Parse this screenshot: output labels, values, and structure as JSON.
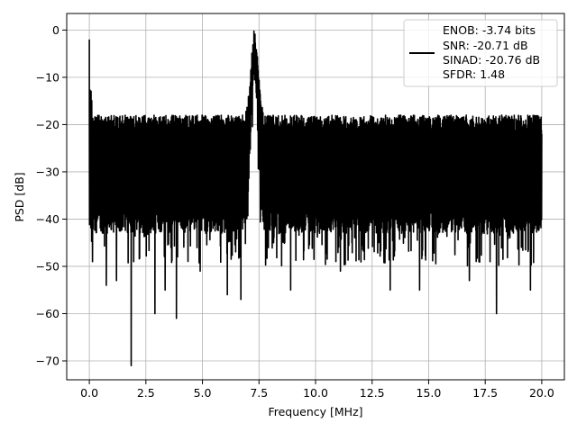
{
  "chart_data": {
    "type": "line",
    "xlabel": "Frequency [MHz]",
    "ylabel": "PSD [dB]",
    "xlim": [
      -1.0,
      21.0
    ],
    "ylim": [
      -74.0,
      3.5
    ],
    "xticks": [
      0.0,
      2.5,
      5.0,
      7.5,
      10.0,
      12.5,
      15.0,
      17.5,
      20.0
    ],
    "xtick_labels": [
      "0.0",
      "2.5",
      "5.0",
      "7.5",
      "10.0",
      "12.5",
      "15.0",
      "17.5",
      "20.0"
    ],
    "yticks": [
      0,
      -10,
      -20,
      -30,
      -40,
      -50,
      -60,
      -70
    ],
    "ytick_labels": [
      "0",
      "−10",
      "−20",
      "−30",
      "−40",
      "−50",
      "−60",
      "−70"
    ],
    "grid": true,
    "legend_position": "top-right",
    "series_color": "#000000",
    "noise_floor_band": {
      "x_range": [
        0.0,
        20.0
      ],
      "upper_db": -18,
      "lower_db": -40,
      "notes_db": "dense noise spans roughly -18 to -40 dB across the full band"
    },
    "peaks": [
      {
        "x": 0.0,
        "y": -2
      },
      {
        "x": 7.3,
        "y": 0
      }
    ],
    "deep_dips": [
      {
        "x": 0.14,
        "y": -49
      },
      {
        "x": 0.75,
        "y": -54
      },
      {
        "x": 1.2,
        "y": -53
      },
      {
        "x": 1.85,
        "y": -71
      },
      {
        "x": 2.9,
        "y": -60
      },
      {
        "x": 3.35,
        "y": -55
      },
      {
        "x": 3.85,
        "y": -61
      },
      {
        "x": 4.9,
        "y": -51
      },
      {
        "x": 6.1,
        "y": -56
      },
      {
        "x": 6.7,
        "y": -57
      },
      {
        "x": 8.9,
        "y": -55
      },
      {
        "x": 11.1,
        "y": -51
      },
      {
        "x": 13.3,
        "y": -55
      },
      {
        "x": 14.6,
        "y": -55
      },
      {
        "x": 16.8,
        "y": -53
      },
      {
        "x": 18.0,
        "y": -60
      },
      {
        "x": 19.5,
        "y": -55
      }
    ],
    "legend": {
      "lines": [
        "ENOB: -3.74 bits",
        "SNR: -20.71 dB",
        "SINAD: -20.76 dB",
        "SFDR: 1.48"
      ]
    }
  }
}
